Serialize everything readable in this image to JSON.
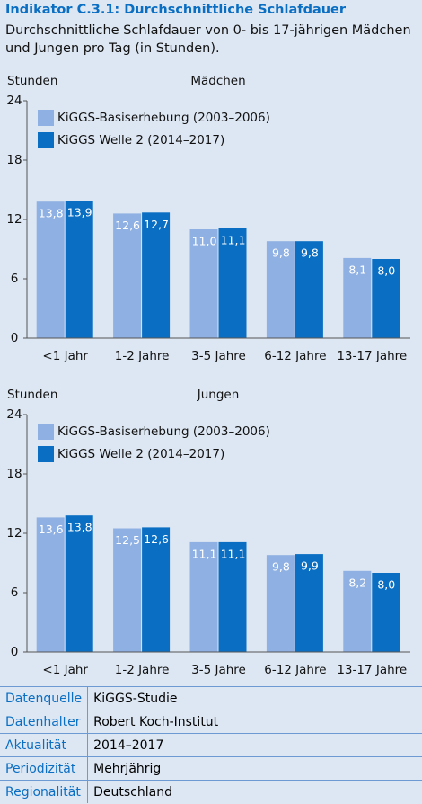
{
  "header": {
    "title": "Indikator C.3.1: Durchschnittliche Schlafdauer",
    "subtitle": "Durchschnittliche Schlafdauer von 0- bis 17-jährigen Mädchen und Jungen pro Tag (in Stunden)."
  },
  "chart_data": [
    {
      "type": "bar",
      "title": "Mädchen",
      "y_label": "Stunden",
      "categories": [
        "<1 Jahr",
        "1-2 Jahre",
        "3-5 Jahre",
        "6-12 Jahre",
        "13-17 Jahre"
      ],
      "series": [
        {
          "name": "KiGGS-Basiserhebung (2003–2006)",
          "color": "#8fb0e2",
          "values": [
            13.8,
            12.6,
            11.0,
            9.8,
            8.1
          ],
          "value_labels": [
            "13,8",
            "12,6",
            "11,0",
            "9,8",
            "8,1"
          ]
        },
        {
          "name": "KiGGS Welle 2 (2014–2017)",
          "color": "#0a6ec2",
          "values": [
            13.9,
            12.7,
            11.1,
            9.8,
            8.0
          ],
          "value_labels": [
            "13,9",
            "12,7",
            "11,1",
            "9,8",
            "8,0"
          ]
        }
      ],
      "ylim": [
        0,
        24
      ],
      "yticks": [
        0,
        6,
        12,
        18,
        24
      ],
      "grid": false,
      "legend": "top-left"
    },
    {
      "type": "bar",
      "title": "Jungen",
      "y_label": "Stunden",
      "categories": [
        "<1 Jahr",
        "1-2 Jahre",
        "3-5 Jahre",
        "6-12 Jahre",
        "13-17 Jahre"
      ],
      "series": [
        {
          "name": "KiGGS-Basiserhebung (2003–2006)",
          "color": "#8fb0e2",
          "values": [
            13.6,
            12.5,
            11.1,
            9.8,
            8.2
          ],
          "value_labels": [
            "13,6",
            "12,5",
            "11,1",
            "9,8",
            "8,2"
          ]
        },
        {
          "name": "KiGGS Welle 2 (2014–2017)",
          "color": "#0a6ec2",
          "values": [
            13.8,
            12.6,
            11.1,
            9.9,
            8.0
          ],
          "value_labels": [
            "13,8",
            "12,6",
            "11,1",
            "9,9",
            "8,0"
          ]
        }
      ],
      "ylim": [
        0,
        24
      ],
      "yticks": [
        0,
        6,
        12,
        18,
        24
      ],
      "grid": false,
      "legend": "top-left"
    }
  ],
  "footer": {
    "rows": [
      [
        "Datenquelle",
        "KiGGS-Studie"
      ],
      [
        "Datenhalter",
        "Robert Koch-Institut"
      ],
      [
        "Aktualität",
        "2014–2017"
      ],
      [
        "Periodizität",
        "Mehrjährig"
      ],
      [
        "Regionalität",
        "Deutschland"
      ]
    ]
  }
}
